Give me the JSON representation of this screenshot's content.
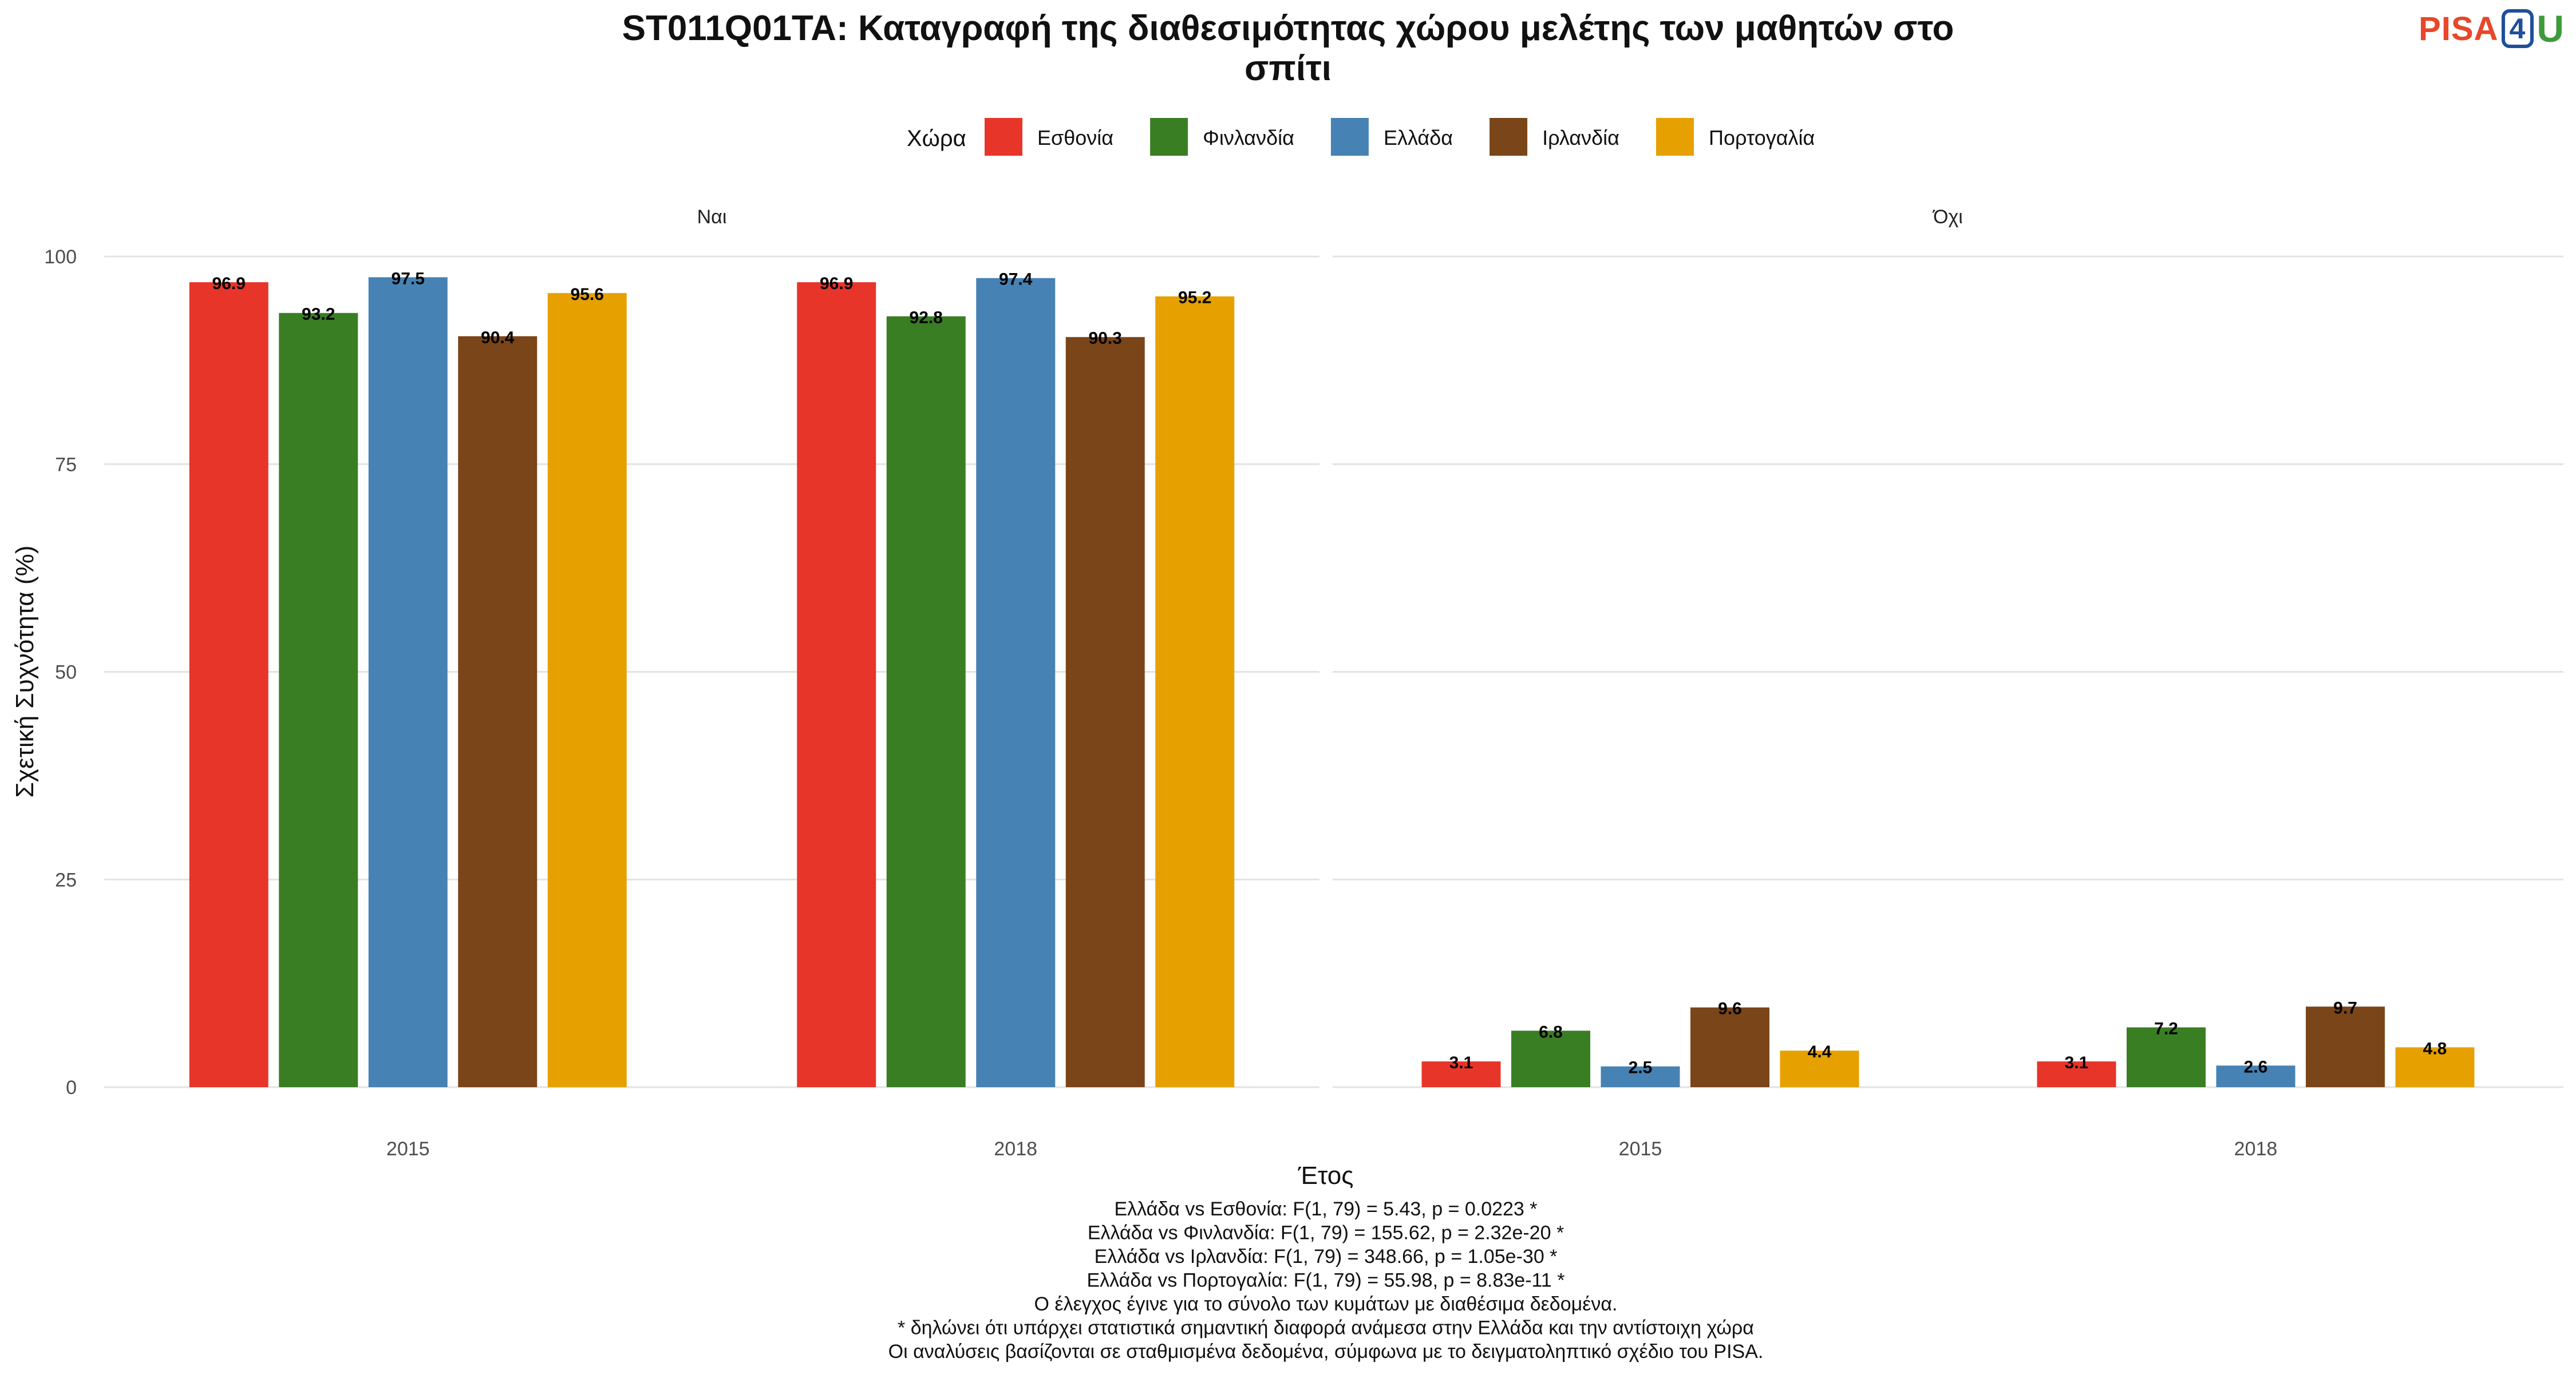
{
  "logo": {
    "part1": "PISA",
    "part2": "4",
    "part3": "U"
  },
  "chart_data": {
    "type": "bar",
    "title_line1": "ST011Q01TA: Καταγραφή της διαθεσιμότητας χώρου μελέτης των μαθητών στο",
    "title_line2": "σπίτι",
    "legend_title": "Χώρα",
    "legend_position": "top",
    "xlabel": "Έτος",
    "ylabel": "Σχετική Συχνότητα (%)",
    "ylim": [
      0,
      100
    ],
    "yticks": [
      0,
      25,
      50,
      75,
      100
    ],
    "grid": true,
    "categories": [
      "2015",
      "2018"
    ],
    "facets": [
      {
        "label": "Ναι",
        "series": [
          {
            "name": "Εσθονία",
            "values": [
              96.9,
              96.9
            ]
          },
          {
            "name": "Φινλανδία",
            "values": [
              93.2,
              92.8
            ]
          },
          {
            "name": "Ελλάδα",
            "values": [
              97.5,
              97.4
            ]
          },
          {
            "name": "Ιρλανδία",
            "values": [
              90.4,
              90.3
            ]
          },
          {
            "name": "Πορτογαλία",
            "values": [
              95.6,
              95.2
            ]
          }
        ]
      },
      {
        "label": "Όχι",
        "series": [
          {
            "name": "Εσθονία",
            "values": [
              3.1,
              3.1
            ]
          },
          {
            "name": "Φινλανδία",
            "values": [
              6.8,
              7.2
            ]
          },
          {
            "name": "Ελλάδα",
            "values": [
              2.5,
              2.6
            ]
          },
          {
            "name": "Ιρλανδία",
            "values": [
              9.6,
              9.7
            ]
          },
          {
            "name": "Πορτογαλία",
            "values": [
              4.4,
              4.8
            ]
          }
        ]
      }
    ],
    "colors": [
      "#e8352a",
      "#3a7e24",
      "#4682b4",
      "#7a4519",
      "#e6a100"
    ],
    "notes": [
      "Ελλάδα vs Εσθονία: F(1, 79) = 5.43, p = 0.0223 *",
      "Ελλάδα vs Φινλανδία: F(1, 79) = 155.62, p = 2.32e-20 *",
      "Ελλάδα vs Ιρλανδία: F(1, 79) = 348.66, p = 1.05e-30 *",
      "Ελλάδα vs Πορτογαλία: F(1, 79) = 55.98, p = 8.83e-11 *",
      "Ο έλεγχος έγινε για το σύνολο των κυμάτων με διαθέσιμα δεδομένα.",
      "* δηλώνει ότι υπάρχει στατιστικά σημαντική διαφορά ανάμεσα στην Ελλάδα και την αντίστοιχη χώρα",
      "Οι αναλύσεις βασίζονται σε σταθμισμένα δεδομένα, σύμφωνα με το δειγματοληπτικό σχέδιο του PISA."
    ]
  }
}
